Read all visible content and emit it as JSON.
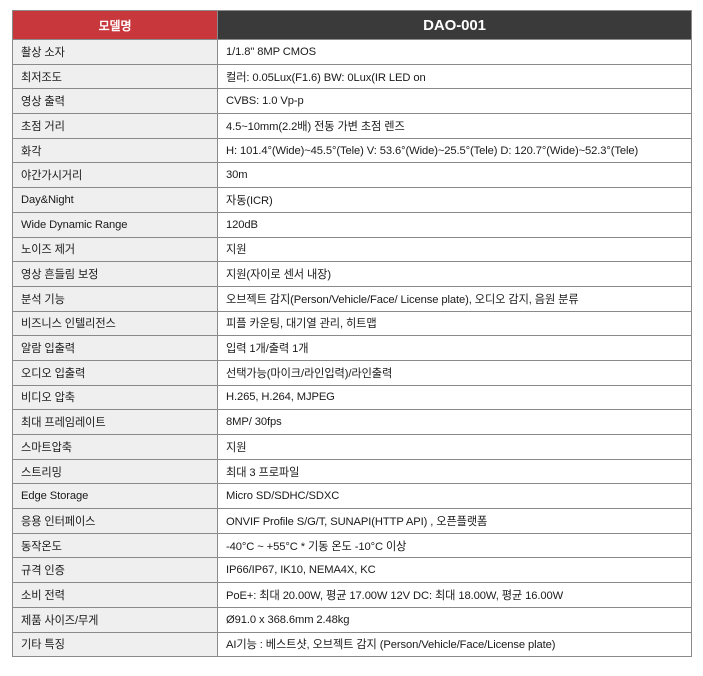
{
  "header": {
    "label": "모델명",
    "model": "DAO-001"
  },
  "rows": [
    {
      "label": "촬상 소자",
      "value": "1/1.8\" 8MP CMOS"
    },
    {
      "label": "최저조도",
      "value": "컬러: 0.05Lux(F1.6) BW: 0Lux(IR LED on"
    },
    {
      "label": "영상 출력",
      "value": "CVBS: 1.0 Vp-p"
    },
    {
      "label": "초점 거리",
      "value": "4.5~10mm(2.2배) 전동 가변 초점 렌즈"
    },
    {
      "label": "화각",
      "value": "H: 101.4°(Wide)~45.5°(Tele) V: 53.6°(Wide)~25.5°(Tele) D: 120.7°(Wide)~52.3°(Tele)"
    },
    {
      "label": "야간가시거리",
      "value": "30m"
    },
    {
      "label": "Day&Night",
      "value": "자동(ICR)"
    },
    {
      "label": "Wide Dynamic Range",
      "value": "120dB"
    },
    {
      "label": "노이즈 제거",
      "value": "지원"
    },
    {
      "label": "영상 흔들림 보정",
      "value": "지원(자이로 센서 내장)"
    },
    {
      "label": "분석 기능",
      "value": "오브젝트 감지(Person/Vehicle/Face/ License plate), 오디오 감지, 음원 분류"
    },
    {
      "label": "비즈니스 인텔리전스",
      "value": "피플 카운팅, 대기열 관리, 히트맵"
    },
    {
      "label": "알람 입출력",
      "value": "입력 1개/출력 1개"
    },
    {
      "label": "오디오 입출력",
      "value": "선택가능(마이크/라인입력)/라인출력"
    },
    {
      "label": "비디오 압축",
      "value": "H.265, H.264, MJPEG"
    },
    {
      "label": "최대 프레임레이트",
      "value": "8MP/ 30fps"
    },
    {
      "label": "스마트압축",
      "value": "지원"
    },
    {
      "label": "스트리밍",
      "value": "최대 3 프로파일"
    },
    {
      "label": "Edge Storage",
      "value": "Micro SD/SDHC/SDXC"
    },
    {
      "label": "응용 인터페이스",
      "value": "ONVIF Profile S/G/T, SUNAPI(HTTP API) , 오픈플랫폼"
    },
    {
      "label": "동작온도",
      "value": "-40°C ~ +55°C * 기동 온도 -10°C 이상"
    },
    {
      "label": "규격 인증",
      "value": "IP66/IP67, IK10, NEMA4X, KC"
    },
    {
      "label": "소비 전력",
      "value": "PoE+: 최대 20.00W, 평균 17.00W 12V DC: 최대 18.00W, 평균 16.00W"
    },
    {
      "label": "제품 사이즈/무게",
      "value": "Ø91.0 x 368.6mm 2.48kg"
    },
    {
      "label": "기타 특징",
      "value": "AI기능 : 베스트샷, 오브젝트 감지 (Person/Vehicle/Face/License plate)"
    }
  ]
}
